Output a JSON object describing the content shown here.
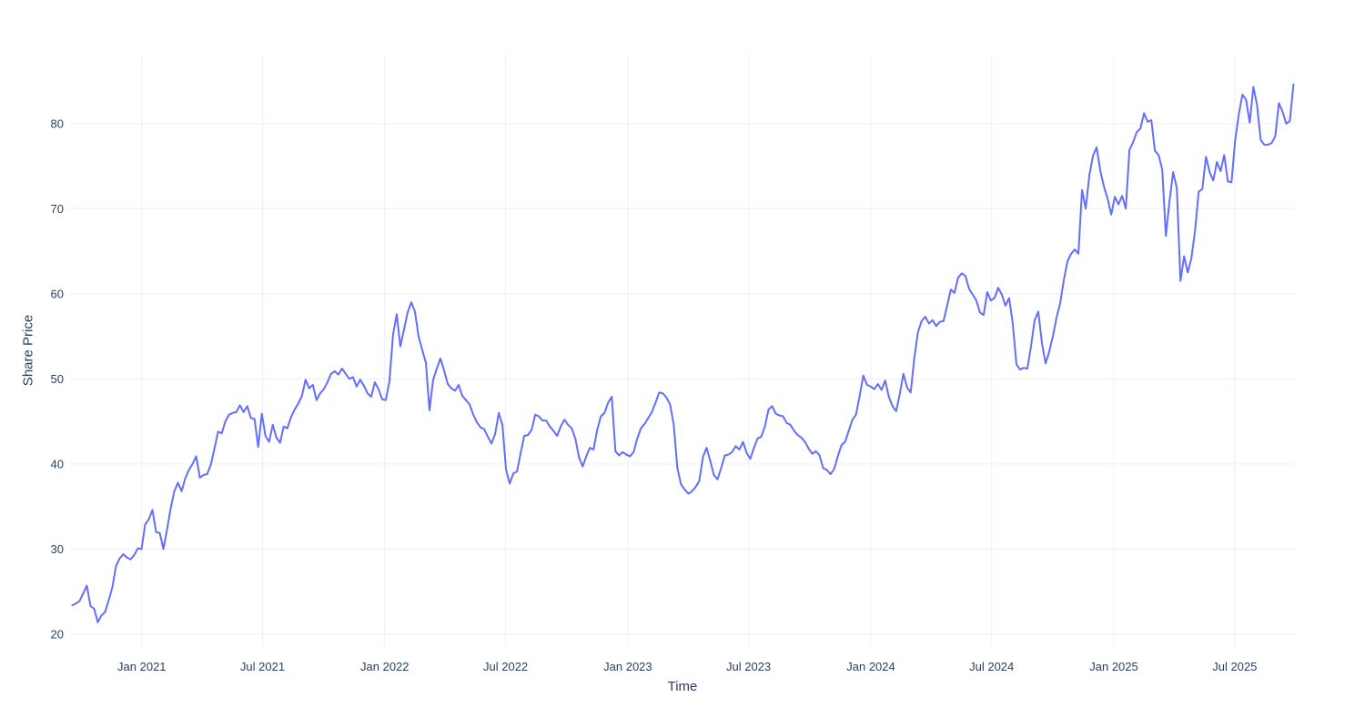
{
  "page": {
    "background_color": "#ffffff"
  },
  "chart_data": {
    "type": "line",
    "title": "",
    "xlabel": "Time",
    "ylabel": "Share Price",
    "legend": "none",
    "grid": true,
    "style": {
      "line_color": "#636EFA",
      "line_width": 2,
      "grid_color": "#EBF0F8",
      "text_color": "#2a3f5f",
      "plot_bg": "#ffffff",
      "tick_font_size": 13
    },
    "x_axis": {
      "min": 2020.705,
      "max": 2025.745,
      "ticks": [
        {
          "x": 2021.0,
          "label": "Jan 2021"
        },
        {
          "x": 2021.497,
          "label": "Jul 2021"
        },
        {
          "x": 2022.0,
          "label": "Jan 2022"
        },
        {
          "x": 2022.497,
          "label": "Jul 2022"
        },
        {
          "x": 2023.0,
          "label": "Jan 2023"
        },
        {
          "x": 2023.497,
          "label": "Jul 2023"
        },
        {
          "x": 2024.0,
          "label": "Jan 2024"
        },
        {
          "x": 2024.497,
          "label": "Jul 2024"
        },
        {
          "x": 2025.0,
          "label": "Jan 2025"
        },
        {
          "x": 2025.497,
          "label": "Jul 2025"
        }
      ]
    },
    "y_axis": {
      "min": 18.6,
      "max": 88.1,
      "ticks": [
        20,
        30,
        40,
        50,
        60,
        70,
        80
      ]
    },
    "series": [
      {
        "name": "Share Price",
        "x_start": 2020.714,
        "x_step": 0.015,
        "values": [
          23.4,
          23.6,
          23.9,
          24.8,
          25.7,
          23.3,
          23.0,
          21.4,
          22.2,
          22.6,
          24.0,
          25.5,
          28.0,
          28.9,
          29.4,
          29.0,
          28.8,
          29.3,
          30.1,
          30.0,
          32.9,
          33.5,
          34.6,
          32.0,
          31.9,
          30.0,
          32.3,
          34.8,
          36.8,
          37.8,
          36.8,
          38.3,
          39.3,
          40.0,
          40.9,
          38.4,
          38.7,
          38.8,
          39.9,
          41.8,
          43.8,
          43.6,
          45.0,
          45.8,
          46.0,
          46.1,
          46.9,
          46.1,
          46.8,
          45.4,
          45.3,
          42.0,
          45.9,
          43.3,
          42.6,
          44.6,
          43.1,
          42.5,
          44.4,
          44.2,
          45.5,
          46.4,
          47.1,
          48.0,
          49.9,
          48.9,
          49.3,
          47.5,
          48.3,
          48.8,
          49.6,
          50.6,
          50.9,
          50.5,
          51.2,
          50.6,
          50.0,
          50.2,
          49.1,
          49.9,
          49.2,
          48.3,
          47.9,
          49.6,
          48.8,
          47.6,
          47.5,
          49.7,
          55.2,
          57.6,
          53.8,
          55.8,
          57.8,
          59.0,
          57.9,
          55.0,
          53.4,
          51.9,
          46.3,
          49.9,
          51.2,
          52.4,
          51.0,
          49.4,
          48.9,
          48.6,
          49.3,
          48.0,
          47.5,
          47.0,
          45.8,
          44.9,
          44.3,
          44.1,
          43.2,
          42.4,
          43.5,
          46.0,
          44.6,
          39.3,
          37.7,
          38.9,
          39.1,
          41.3,
          43.3,
          43.4,
          44.0,
          45.8,
          45.6,
          45.1,
          45.1,
          44.4,
          43.9,
          43.3,
          44.4,
          45.2,
          44.6,
          44.2,
          43.0,
          40.8,
          39.7,
          40.9,
          41.9,
          41.7,
          44.0,
          45.6,
          46.0,
          47.2,
          47.9,
          41.5,
          41.0,
          41.4,
          41.1,
          40.9,
          41.4,
          43.0,
          44.2,
          44.7,
          45.4,
          46.1,
          47.2,
          48.4,
          48.3,
          47.8,
          47.0,
          44.6,
          39.5,
          37.6,
          37.0,
          36.5,
          36.8,
          37.3,
          38.0,
          40.8,
          41.9,
          40.4,
          38.7,
          38.2,
          39.5,
          41.0,
          41.1,
          41.4,
          42.1,
          41.7,
          42.6,
          41.3,
          40.6,
          41.9,
          43.0,
          43.2,
          44.4,
          46.4,
          46.8,
          45.9,
          45.7,
          45.6,
          44.8,
          44.6,
          43.9,
          43.4,
          43.1,
          42.6,
          41.8,
          41.2,
          41.5,
          41.0,
          39.5,
          39.3,
          38.8,
          39.4,
          40.9,
          42.2,
          42.6,
          43.9,
          45.2,
          45.8,
          48.0,
          50.4,
          49.3,
          49.1,
          48.8,
          49.4,
          48.7,
          49.8,
          47.9,
          46.8,
          46.2,
          48.2,
          50.6,
          49.0,
          48.4,
          52.5,
          55.5,
          56.8,
          57.3,
          56.5,
          56.9,
          56.2,
          56.7,
          56.8,
          58.6,
          60.5,
          60.1,
          61.9,
          62.4,
          62.1,
          60.6,
          59.9,
          59.2,
          57.8,
          57.5,
          60.2,
          59.2,
          59.5,
          60.7,
          59.9,
          58.6,
          59.5,
          56.5,
          51.7,
          51.1,
          51.3,
          51.2,
          53.8,
          56.9,
          57.9,
          54.2,
          51.8,
          53.2,
          55.0,
          57.2,
          58.9,
          61.6,
          63.8,
          64.7,
          65.2,
          64.7,
          72.2,
          70.0,
          73.9,
          76.2,
          77.2,
          74.5,
          72.6,
          71.2,
          69.3,
          71.4,
          70.5,
          71.5,
          70.0,
          76.9,
          77.8,
          79.0,
          79.4,
          81.2,
          80.2,
          80.4,
          76.8,
          76.3,
          74.6,
          66.8,
          70.9,
          74.3,
          72.4,
          61.5,
          64.4,
          62.5,
          64.2,
          67.4,
          72.0,
          72.3,
          76.1,
          74.3,
          73.3,
          75.5,
          74.4,
          76.3,
          73.2,
          73.1,
          78.0,
          81.1,
          83.4,
          82.8,
          80.1,
          84.3,
          82.2,
          78.1,
          77.5,
          77.5,
          77.7,
          78.5,
          82.4,
          81.4,
          80.0,
          80.3,
          84.6
        ]
      }
    ]
  }
}
